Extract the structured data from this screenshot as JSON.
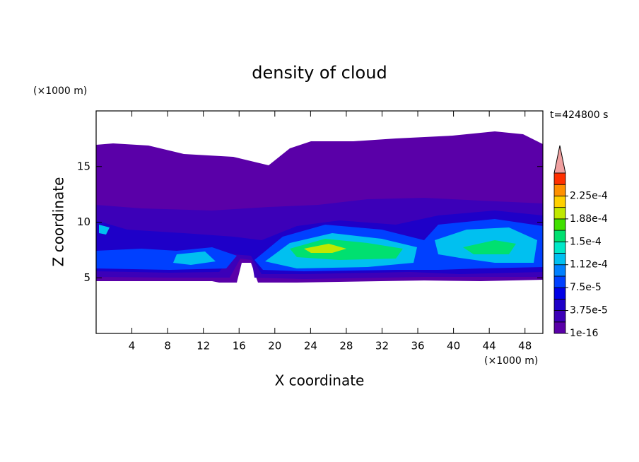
{
  "chart_data": {
    "type": "contour",
    "title": "density of cloud",
    "time_label": "t=424800 s",
    "x_label": "X coordinate",
    "y_label": "Z coordinate",
    "x_unit": "(×1000 m)",
    "y_unit": "(×1000 m)",
    "xlim": [
      0,
      50
    ],
    "xticks": [
      4,
      8,
      12,
      16,
      20,
      24,
      28,
      32,
      36,
      40,
      44,
      48
    ],
    "ylim": [
      0,
      20
    ],
    "yticks": [
      5,
      10,
      15
    ],
    "colorbar": {
      "levels": [
        1e-16,
        1.875e-05,
        3.75e-05,
        5.625e-05,
        7.5e-05,
        9.375e-05,
        0.0001125,
        0.00013125,
        0.00015,
        0.00016875,
        0.0001875,
        0.00020625,
        0.000225,
        0.00024375,
        0.0002625
      ],
      "colors": [
        "#5a00a8",
        "#3c00b8",
        "#1e00c8",
        "#0000e6",
        "#0040ff",
        "#0080ff",
        "#00c0f0",
        "#00e8c8",
        "#00e070",
        "#40e000",
        "#c0e800",
        "#ffd000",
        "#ff9000",
        "#ff3000"
      ],
      "ticks": [
        1e-16,
        {
          "value": 3.75e-05,
          "label": "3.75e-5"
        },
        {
          "value": 7.5e-05,
          "label": "7.5e-5"
        },
        {
          "value": 0.0001125,
          "label": "1.12e-4"
        },
        {
          "value": 0.00015,
          "label": "1.5e-4"
        },
        {
          "value": 0.0001875,
          "label": "1.88e-4"
        },
        {
          "value": 0.000225,
          "label": "2.25e-4"
        }
      ]
    }
  }
}
